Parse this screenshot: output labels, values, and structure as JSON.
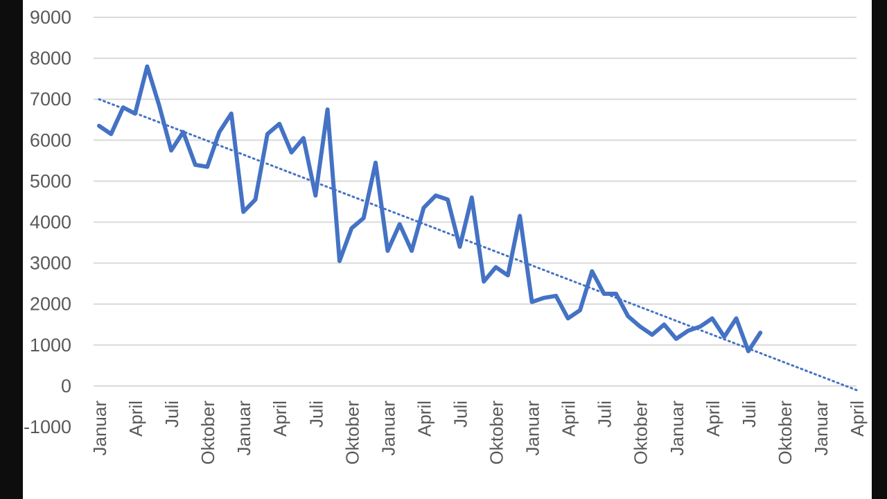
{
  "chart_data": {
    "type": "line",
    "title": "",
    "xlabel": "",
    "ylabel": "",
    "ylim": [
      -1000,
      9000
    ],
    "yticks": [
      9000,
      8000,
      7000,
      6000,
      5000,
      4000,
      3000,
      2000,
      1000,
      0,
      -1000
    ],
    "ytick_labels": [
      "9000",
      "8000",
      "7000",
      "6000",
      "5000",
      "4000",
      "3000",
      "2000",
      "1000",
      "0",
      "-1000"
    ],
    "grid": true,
    "legend": "none",
    "colors": {
      "series": "#4472c4",
      "grid": "#d9d9d9",
      "tick_text": "#595959"
    },
    "categories_count": 64,
    "x_tick_labels": [
      {
        "index": 0,
        "label": "Januar"
      },
      {
        "index": 3,
        "label": "April"
      },
      {
        "index": 6,
        "label": "Juli"
      },
      {
        "index": 9,
        "label": "Oktober"
      },
      {
        "index": 12,
        "label": "Januar"
      },
      {
        "index": 15,
        "label": "April"
      },
      {
        "index": 18,
        "label": "Juli"
      },
      {
        "index": 21,
        "label": "Oktober"
      },
      {
        "index": 24,
        "label": "Januar"
      },
      {
        "index": 27,
        "label": "April"
      },
      {
        "index": 30,
        "label": "Juli"
      },
      {
        "index": 33,
        "label": "Oktober"
      },
      {
        "index": 36,
        "label": "Januar"
      },
      {
        "index": 39,
        "label": "April"
      },
      {
        "index": 42,
        "label": "Juli"
      },
      {
        "index": 45,
        "label": "Oktober"
      },
      {
        "index": 48,
        "label": "Januar"
      },
      {
        "index": 51,
        "label": "April"
      },
      {
        "index": 54,
        "label": "Juli"
      },
      {
        "index": 57,
        "label": "Oktober"
      },
      {
        "index": 60,
        "label": "Januar"
      },
      {
        "index": 63,
        "label": "April"
      }
    ],
    "series": [
      {
        "style": "solid",
        "values": [
          6350,
          6150,
          6800,
          6650,
          7800,
          6850,
          5750,
          6200,
          5400,
          5350,
          6200,
          6650,
          4250,
          4550,
          6150,
          6400,
          5700,
          6050,
          4650,
          6750,
          3050,
          3850,
          4100,
          5450,
          3300,
          3950,
          3300,
          4350,
          4650,
          4550,
          3400,
          4600,
          2550,
          2900,
          2700,
          4150,
          2050,
          2150,
          2200,
          1650,
          1850,
          2800,
          2250,
          2250,
          1700,
          1450,
          1250,
          1500,
          1150,
          1350,
          1450,
          1650,
          1200,
          1650,
          850,
          1300
        ]
      },
      {
        "style": "dotted",
        "trendline": "linear",
        "values": [
          7000,
          -100
        ]
      }
    ]
  }
}
